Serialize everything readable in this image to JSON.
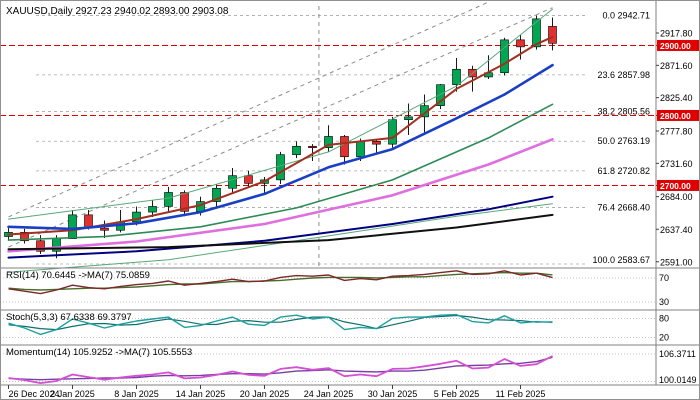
{
  "header": {
    "title": "XAUUSD,Daily 2927.23 2940.02 2893.00 2903.08"
  },
  "colors": {
    "background": "#ffffff",
    "border": "#909090",
    "candle_up": "#00a651",
    "candle_down": "#e03030",
    "wick": "#1a1a1a",
    "level_red": "#e00000",
    "fib_line": "#a8a8a8",
    "channel_dash": "#8c8c8c",
    "ma_fast": "#a03020",
    "ma_mid": "#1a3fc4",
    "ma_slow": "#2e8b57",
    "ma_long": "#df6fdf",
    "ma_xlong": "#000080",
    "ma_flat": "#101010",
    "env_line": "#58a878",
    "rsi_line": "#7a2828",
    "rsi_ma": "#4a6b2a",
    "stoch_k": "#1f9f9f",
    "stoch_d": "#0f6f6f",
    "mom_line": "#d44fd4",
    "mom_ma": "#7a3fa0",
    "axis_text": "#000000"
  },
  "price_axis": {
    "labels": [
      {
        "text": "2917.80",
        "price": 2917.8,
        "highlight": false
      },
      {
        "text": "2900.00",
        "price": 2900.0,
        "highlight": true
      },
      {
        "text": "2871.60",
        "price": 2871.6,
        "highlight": false
      },
      {
        "text": "2825.40",
        "price": 2825.4,
        "highlight": false
      },
      {
        "text": "2800.00",
        "price": 2800.0,
        "highlight": true
      },
      {
        "text": "2777.80",
        "price": 2777.8,
        "highlight": false
      },
      {
        "text": "2731.60",
        "price": 2731.6,
        "highlight": false
      },
      {
        "text": "2700.00",
        "price": 2700.0,
        "highlight": true
      },
      {
        "text": "2684.00",
        "price": 2684.0,
        "highlight": false
      },
      {
        "text": "2637.40",
        "price": 2637.4,
        "highlight": false
      },
      {
        "text": "2591.00",
        "price": 2591.0,
        "highlight": false
      }
    ]
  },
  "fib": {
    "levels": [
      {
        "ratio": "0.0",
        "price_text": "2942.71",
        "price": 2942.71
      },
      {
        "ratio": "23.6",
        "price_text": "2857.98",
        "price": 2857.98
      },
      {
        "ratio": "38.2",
        "price_text": "2805.56",
        "price": 2805.56
      },
      {
        "ratio": "50.0",
        "price_text": "2763.19",
        "price": 2763.19
      },
      {
        "ratio": "61.8",
        "price_text": "2720.82",
        "price": 2720.82
      },
      {
        "ratio": "76.4",
        "price_text": "2668.40",
        "price": 2668.4
      },
      {
        "ratio": "100.0",
        "price_text": "2583.67",
        "price": 2583.67
      }
    ]
  },
  "time_axis": {
    "ticks": [
      {
        "label": "26 Dec 2024",
        "idx": 0
      },
      {
        "label": "2 Jan 2025",
        "idx": 4
      },
      {
        "label": "8 Jan 2025",
        "idx": 8
      },
      {
        "label": "14 Jan 2025",
        "idx": 12
      },
      {
        "label": "20 Jan 2025",
        "idx": 16
      },
      {
        "label": "24 Jan 2025",
        "idx": 20
      },
      {
        "label": "30 Jan 2025",
        "idx": 24
      },
      {
        "label": "5 Feb 2025",
        "idx": 28
      },
      {
        "label": "11 Feb 2025",
        "idx": 32
      }
    ]
  },
  "indicators": {
    "rsi": {
      "label": "RSI(14) 70.6445 ->MA(7) 75.0859",
      "levels": [
        {
          "text": "70",
          "value": 70
        },
        {
          "text": "30",
          "value": 30
        }
      ],
      "values": [
        52,
        48,
        44,
        50,
        58,
        54,
        52,
        56,
        59,
        61,
        65,
        58,
        61,
        64,
        68,
        64,
        65,
        71,
        74,
        73,
        75,
        66,
        69,
        67,
        73,
        74,
        76,
        79,
        82,
        76,
        77,
        82,
        75,
        78,
        70.6
      ],
      "ma": [
        53,
        51,
        50,
        51,
        52,
        53,
        53,
        54,
        55,
        57,
        59,
        60,
        60,
        62,
        64,
        64,
        65,
        66,
        68,
        70,
        71,
        71,
        71,
        70,
        71,
        72,
        72,
        74,
        76,
        77,
        78,
        79,
        78,
        78,
        75.1
      ]
    },
    "stoch": {
      "label": "Stoch(5,3,3) 67.6338 69.3797",
      "levels": [
        {
          "text": "80",
          "value": 80
        },
        {
          "text": "20",
          "value": 20
        }
      ],
      "k": [
        65,
        50,
        30,
        45,
        78,
        65,
        50,
        62,
        72,
        78,
        84,
        52,
        58,
        72,
        84,
        62,
        58,
        84,
        90,
        78,
        84,
        45,
        52,
        48,
        80,
        84,
        84,
        90,
        92,
        70,
        66,
        88,
        66,
        70,
        67.6
      ],
      "d": [
        60,
        55,
        48,
        45,
        55,
        63,
        64,
        59,
        61,
        71,
        78,
        71,
        62,
        61,
        71,
        73,
        68,
        68,
        77,
        84,
        84,
        69,
        60,
        48,
        60,
        71,
        83,
        86,
        89,
        84,
        76,
        75,
        73,
        68,
        69.4
      ]
    },
    "momentum": {
      "label": "Momentum(14) 105.9252 ->MA(7) 105.5553",
      "levels": [
        {
          "text": "106.3711",
          "value": 106.3711
        },
        {
          "text": "100.0149",
          "value": 100.0149
        }
      ],
      "values": [
        100.8,
        100.3,
        99.6,
        100.1,
        101.6,
        101.0,
        100.4,
        100.9,
        101.3,
        101.6,
        102.1,
        100.7,
        100.9,
        101.5,
        102.3,
        101.5,
        101.3,
        102.9,
        103.3,
        102.7,
        103.1,
        101.2,
        101.6,
        101.2,
        102.9,
        103.0,
        103.5,
        104.1,
        104.8,
        103.0,
        103.2,
        105.2,
        103.6,
        104.0,
        105.9
      ],
      "ma": [
        100.7,
        100.5,
        100.4,
        100.5,
        100.6,
        100.7,
        100.8,
        100.8,
        100.9,
        101.2,
        101.4,
        101.3,
        101.4,
        101.6,
        101.8,
        101.8,
        101.7,
        102.0,
        102.4,
        102.5,
        102.7,
        102.4,
        102.3,
        102.2,
        102.4,
        102.4,
        102.6,
        103.1,
        103.6,
        103.7,
        103.8,
        104.1,
        104.2,
        104.6,
        105.6
      ]
    }
  },
  "chart_data": {
    "type": "candlestick",
    "symbol": "XAUUSD",
    "timeframe": "Daily",
    "title": "XAUUSD,Daily",
    "current_bar": {
      "open": 2927.23,
      "high": 2940.02,
      "low": 2893.0,
      "close": 2903.08
    },
    "visible_price_range": [
      2582,
      2958
    ],
    "dates": [
      "26 Dec",
      "27 Dec",
      "30 Dec",
      "31 Dec",
      "2 Jan",
      "3 Jan",
      "6 Jan",
      "7 Jan",
      "8 Jan",
      "9 Jan",
      "10 Jan",
      "13 Jan",
      "14 Jan",
      "15 Jan",
      "16 Jan",
      "17 Jan",
      "20 Jan",
      "21 Jan",
      "22 Jan",
      "23 Jan",
      "24 Jan",
      "27 Jan",
      "28 Jan",
      "29 Jan",
      "30 Jan",
      "31 Jan",
      "3 Feb",
      "4 Feb",
      "5 Feb",
      "6 Feb",
      "7 Feb",
      "10 Feb",
      "11 Feb",
      "12 Feb",
      "13 Feb"
    ],
    "candles_ohlc": [
      [
        2627,
        2639,
        2622,
        2633
      ],
      [
        2633,
        2638,
        2617,
        2621
      ],
      [
        2621,
        2629,
        2602,
        2606
      ],
      [
        2606,
        2629,
        2596,
        2624
      ],
      [
        2624,
        2665,
        2624,
        2658
      ],
      [
        2658,
        2665,
        2637,
        2639
      ],
      [
        2639,
        2650,
        2625,
        2636
      ],
      [
        2636,
        2665,
        2633,
        2648
      ],
      [
        2648,
        2670,
        2643,
        2662
      ],
      [
        2662,
        2679,
        2655,
        2670
      ],
      [
        2670,
        2698,
        2663,
        2690
      ],
      [
        2690,
        2693,
        2656,
        2663
      ],
      [
        2663,
        2684,
        2657,
        2677
      ],
      [
        2677,
        2702,
        2670,
        2696
      ],
      [
        2696,
        2725,
        2690,
        2714
      ],
      [
        2714,
        2721,
        2698,
        2703
      ],
      [
        2703,
        2712,
        2689,
        2708
      ],
      [
        2708,
        2748,
        2702,
        2744
      ],
      [
        2744,
        2763,
        2739,
        2756
      ],
      [
        2756,
        2759,
        2735,
        2754
      ],
      [
        2754,
        2786,
        2748,
        2770
      ],
      [
        2770,
        2772,
        2730,
        2741
      ],
      [
        2741,
        2767,
        2735,
        2763
      ],
      [
        2763,
        2766,
        2744,
        2759
      ],
      [
        2759,
        2798,
        2754,
        2794
      ],
      [
        2794,
        2817,
        2772,
        2798
      ],
      [
        2798,
        2830,
        2772,
        2814
      ],
      [
        2814,
        2845,
        2809,
        2844
      ],
      [
        2844,
        2882,
        2834,
        2866
      ],
      [
        2866,
        2871,
        2834,
        2855
      ],
      [
        2855,
        2886,
        2852,
        2861
      ],
      [
        2861,
        2911,
        2857,
        2908
      ],
      [
        2908,
        2915,
        2880,
        2898
      ],
      [
        2898,
        2942.71,
        2894,
        2938
      ],
      [
        2927.23,
        2940.02,
        2893.0,
        2903.08
      ]
    ],
    "overlays": {
      "moving_averages": [
        {
          "name": "fast",
          "color_key": "ma_fast",
          "width": 2.0,
          "points": [
            [
              0,
              2630
            ],
            [
              4,
              2636
            ],
            [
              8,
              2652
            ],
            [
              12,
              2672
            ],
            [
              16,
              2706
            ],
            [
              20,
              2758
            ],
            [
              24,
              2768
            ],
            [
              28,
              2838
            ],
            [
              31,
              2874
            ],
            [
              33,
              2902
            ],
            [
              34,
              2912
            ]
          ]
        },
        {
          "name": "mid",
          "color_key": "ma_mid",
          "width": 2.6,
          "points": [
            [
              0,
              2641
            ],
            [
              4,
              2638
            ],
            [
              8,
              2646
            ],
            [
              12,
              2662
            ],
            [
              16,
              2688
            ],
            [
              20,
              2726
            ],
            [
              24,
              2752
            ],
            [
              28,
              2796
            ],
            [
              31,
              2830
            ],
            [
              34,
              2872
            ]
          ]
        },
        {
          "name": "slow",
          "color_key": "ma_slow",
          "width": 1.6,
          "points": [
            [
              0,
              2622
            ],
            [
              6,
              2627
            ],
            [
              12,
              2641
            ],
            [
              18,
              2668
            ],
            [
              24,
              2708
            ],
            [
              30,
              2768
            ],
            [
              34,
              2816
            ]
          ]
        },
        {
          "name": "long",
          "color_key": "ma_long",
          "width": 2.6,
          "points": [
            [
              0,
              2606
            ],
            [
              8,
              2620
            ],
            [
              16,
              2645
            ],
            [
              24,
              2686
            ],
            [
              30,
              2730
            ],
            [
              34,
              2766
            ]
          ]
        },
        {
          "name": "xlong",
          "color_key": "ma_xlong",
          "width": 2.0,
          "points": [
            [
              0,
              2597
            ],
            [
              8,
              2606
            ],
            [
              16,
              2621
            ],
            [
              24,
              2645
            ],
            [
              30,
              2666
            ],
            [
              34,
              2684
            ]
          ]
        },
        {
          "name": "flat",
          "color_key": "ma_flat",
          "width": 2.0,
          "points": [
            [
              0,
              2609
            ],
            [
              10,
              2612
            ],
            [
              20,
              2622
            ],
            [
              28,
              2640
            ],
            [
              34,
              2658
            ]
          ]
        }
      ],
      "envelopes": [
        {
          "points": [
            [
              0,
              2652
            ],
            [
              10,
              2682
            ],
            [
              20,
              2748
            ],
            [
              28,
              2842
            ],
            [
              34,
              2952
            ]
          ]
        },
        {
          "points": [
            [
              0,
              2576
            ],
            [
              10,
              2594
            ],
            [
              20,
              2628
            ],
            [
              28,
              2656
            ],
            [
              34,
              2674
            ]
          ]
        }
      ],
      "channel_lines": [
        {
          "from": [
            0,
            2655
          ],
          "to": [
            30,
            2962
          ]
        },
        {
          "from": [
            0,
            2612
          ],
          "to": [
            34,
            2954
          ]
        }
      ],
      "vertical_dashed_line_at_bar": 19.4,
      "horizontal_levels": [
        2900,
        2800,
        2700
      ],
      "fibonacci": {
        "high": 2942.71,
        "low": 2583.67
      }
    }
  }
}
